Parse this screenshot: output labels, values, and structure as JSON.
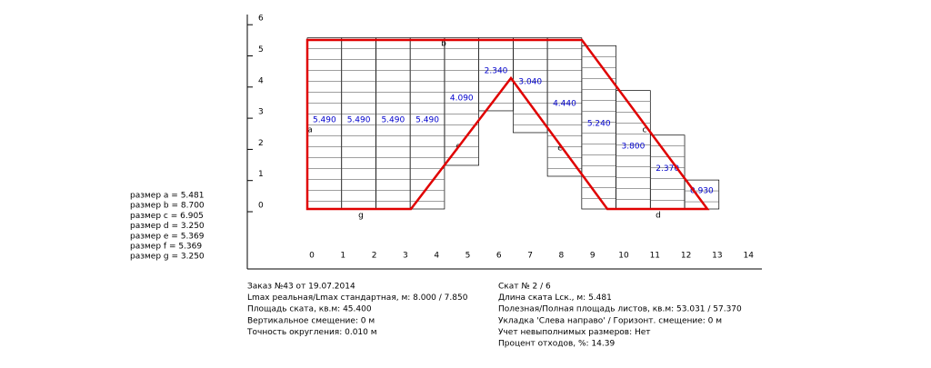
{
  "axes": {
    "xticks": [
      "0",
      "1",
      "2",
      "3",
      "4",
      "5",
      "6",
      "7",
      "8",
      "9",
      "10",
      "11",
      "12",
      "13",
      "14"
    ],
    "yticks": [
      "0",
      "1",
      "2",
      "3",
      "4",
      "5",
      "6"
    ]
  },
  "sheets": [
    {
      "label": "5.490",
      "x": 0,
      "bottom": 0,
      "top": 5.49
    },
    {
      "label": "5.490",
      "x": 1.1,
      "bottom": 0,
      "top": 5.49
    },
    {
      "label": "5.490",
      "x": 2.2,
      "bottom": 0,
      "top": 5.49
    },
    {
      "label": "5.490",
      "x": 3.3,
      "bottom": 0,
      "top": 5.49
    },
    {
      "label": "4.090",
      "x": 4.4,
      "bottom": 1.4,
      "top": 5.49
    },
    {
      "label": "2.340",
      "x": 5.5,
      "bottom": 3.15,
      "top": 5.49
    },
    {
      "label": "3.040",
      "x": 6.6,
      "bottom": 2.45,
      "top": 5.49
    },
    {
      "label": "4.440",
      "x": 7.7,
      "bottom": 1.05,
      "top": 5.49
    },
    {
      "label": "5.240",
      "x": 8.8,
      "bottom": 0,
      "top": 5.24
    },
    {
      "label": "3.800",
      "x": 9.9,
      "bottom": 0,
      "top": 3.8
    },
    {
      "label": "2.370",
      "x": 11.0,
      "bottom": 0,
      "top": 2.37
    },
    {
      "label": "0.930",
      "x": 12.1,
      "bottom": 0,
      "top": 0.93
    }
  ],
  "side_labels": [
    "a",
    "b",
    "c",
    "d",
    "e",
    "f",
    "g"
  ],
  "sizes": [
    "размер  a = 5.481",
    "размер  b = 8.700",
    "размер  c = 6.905",
    "размер  d = 3.250",
    "размер  e = 5.369",
    "размер  f = 5.369",
    "размер  g = 3.250"
  ],
  "info_left": [
    "Заказ №43 от 19.07.2014",
    "Lmax реальная/Lmax стандартная, м: 8.000 / 7.850",
    "Площадь ската, кв.м:  45.400",
    "Вертикальное смещение: 0 м",
    "Точность округления: 0.010 м"
  ],
  "info_right": [
    "Скат № 2 / 6",
    "Длина ската Lск., м: 5.481",
    "Полезная/Полная площадь листов, кв.м:  53.031 / 57.370",
    "Укладка 'Слева направо' / Горизонт. смещение: 0 м",
    "Учет невыполнимых размеров: Нет",
    "Процент отходов, %: 14.39"
  ]
}
